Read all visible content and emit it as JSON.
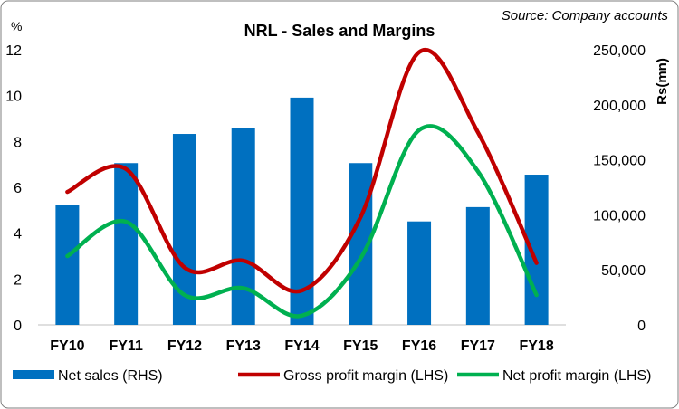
{
  "chart_data": {
    "type": "bar+line",
    "title": "NRL - Sales and Margins",
    "source": "Source: Company accounts",
    "left_axis_label": "%",
    "right_axis_label": "Rs(mn)",
    "categories": [
      "FY10",
      "FY11",
      "FY12",
      "FY13",
      "FY14",
      "FY15",
      "FY16",
      "FY17",
      "FY18"
    ],
    "left_ylim": [
      0,
      12
    ],
    "left_ticks": [
      "0",
      "2",
      "4",
      "6",
      "8",
      "10",
      "12"
    ],
    "right_ylim": [
      0,
      250000
    ],
    "right_ticks": [
      "0",
      "50,000",
      "100,000",
      "150,000",
      "200,000",
      "250,000"
    ],
    "series": [
      {
        "name": "Net sales (RHS)",
        "type": "bar",
        "axis": "right",
        "color": "#0070C0",
        "values": [
          109000,
          147000,
          173500,
          178500,
          206500,
          147000,
          94000,
          107000,
          136500
        ]
      },
      {
        "name": "Gross profit margin (LHS)",
        "type": "line",
        "axis": "left",
        "color": "#C00000",
        "values": [
          5.8,
          6.8,
          2.5,
          2.8,
          1.5,
          4.7,
          11.9,
          8.4,
          2.7
        ]
      },
      {
        "name": "Net profit margin (LHS)",
        "type": "line",
        "axis": "left",
        "color": "#00B050",
        "values": [
          3.0,
          4.5,
          1.3,
          1.6,
          0.4,
          2.9,
          8.5,
          6.7,
          1.3
        ]
      }
    ],
    "legend": "bottom",
    "grid": false
  }
}
